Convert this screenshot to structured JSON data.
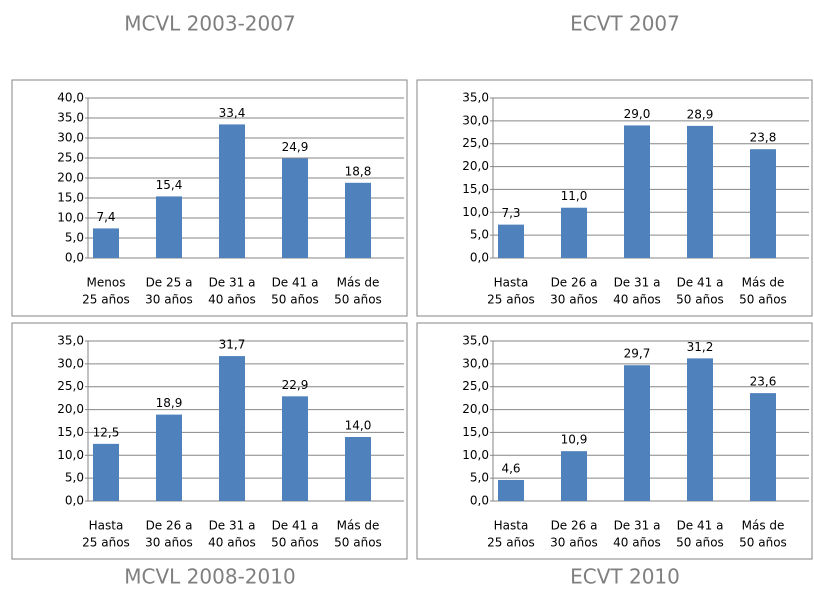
{
  "chart_data": [
    {
      "type": "bar",
      "title": "MCVL 2003-2007",
      "color": "#4f81bd",
      "grid": true,
      "categories": [
        [
          "Menos",
          "25 años"
        ],
        [
          "De 25 a",
          "30 años"
        ],
        [
          "De 31 a",
          "40 años"
        ],
        [
          "De 41 a",
          "50 años"
        ],
        [
          "Más de",
          "50 años"
        ]
      ],
      "values": [
        7.4,
        15.4,
        33.4,
        24.9,
        18.8
      ],
      "value_labels": [
        "7,4",
        "15,4",
        "33,4",
        "24,9",
        "18,8"
      ],
      "ylim": [
        0,
        40
      ],
      "yticks": [
        {
          "value": 0,
          "label": "0,0"
        },
        {
          "value": 5,
          "label": "5,0"
        },
        {
          "value": 10,
          "label": "10,0"
        },
        {
          "value": 15,
          "label": "15,0"
        },
        {
          "value": 20,
          "label": "20,0"
        },
        {
          "value": 25,
          "label": "25,0"
        },
        {
          "value": 30,
          "label": "30,0"
        },
        {
          "value": 35,
          "label": "35,0"
        },
        {
          "value": 40,
          "label": "40,0"
        }
      ]
    },
    {
      "type": "bar",
      "title": "ECVT 2007",
      "color": "#4f81bd",
      "grid": true,
      "categories": [
        [
          "Hasta",
          "25 años"
        ],
        [
          "De 26 a",
          "30 años"
        ],
        [
          "De 31 a",
          "40 años"
        ],
        [
          "De 41 a",
          "50 años"
        ],
        [
          "Más de",
          "50 años"
        ]
      ],
      "values": [
        7.3,
        11.0,
        29.0,
        28.9,
        23.8
      ],
      "value_labels": [
        "7,3",
        "11,0",
        "29,0",
        "28,9",
        "23,8"
      ],
      "ylim": [
        0,
        35
      ],
      "yticks": [
        {
          "value": 0,
          "label": "0,0"
        },
        {
          "value": 5,
          "label": "5,0"
        },
        {
          "value": 10,
          "label": "10,0"
        },
        {
          "value": 15,
          "label": "15,0"
        },
        {
          "value": 20,
          "label": "20,0"
        },
        {
          "value": 25,
          "label": "25,0"
        },
        {
          "value": 30,
          "label": "30,0"
        },
        {
          "value": 35,
          "label": "35,0"
        }
      ]
    },
    {
      "type": "bar",
      "title": "MCVL 2008-2010",
      "color": "#4f81bd",
      "grid": true,
      "categories": [
        [
          "Hasta",
          "25 años"
        ],
        [
          "De 26 a",
          "30 años"
        ],
        [
          "De 31 a",
          "40 años"
        ],
        [
          "De 41 a",
          "50 años"
        ],
        [
          "Más de",
          "50 años"
        ]
      ],
      "values": [
        12.5,
        18.9,
        31.7,
        22.9,
        14.0
      ],
      "value_labels": [
        "12,5",
        "18,9",
        "31,7",
        "22,9",
        "14,0"
      ],
      "ylim": [
        0,
        35
      ],
      "yticks": [
        {
          "value": 0,
          "label": "0,0"
        },
        {
          "value": 5,
          "label": "5,0"
        },
        {
          "value": 10,
          "label": "10,0"
        },
        {
          "value": 15,
          "label": "15,0"
        },
        {
          "value": 20,
          "label": "20,0"
        },
        {
          "value": 25,
          "label": "25,0"
        },
        {
          "value": 30,
          "label": "30,0"
        },
        {
          "value": 35,
          "label": "35,0"
        }
      ]
    },
    {
      "type": "bar",
      "title": "ECVT 2010",
      "color": "#4f81bd",
      "grid": true,
      "categories": [
        [
          "Hasta",
          "25 años"
        ],
        [
          "De 26 a",
          "30 años"
        ],
        [
          "De 31 a",
          "40 años"
        ],
        [
          "De 41 a",
          "50 años"
        ],
        [
          "Más de",
          "50 años"
        ]
      ],
      "values": [
        4.6,
        10.9,
        29.7,
        31.2,
        23.6
      ],
      "value_labels": [
        "4,6",
        "10,9",
        "29,7",
        "31,2",
        "23,6"
      ],
      "ylim": [
        0,
        35
      ],
      "yticks": [
        {
          "value": 0,
          "label": "0,0"
        },
        {
          "value": 5,
          "label": "5,0"
        },
        {
          "value": 10,
          "label": "10,0"
        },
        {
          "value": 15,
          "label": "15,0"
        },
        {
          "value": 20,
          "label": "20,0"
        },
        {
          "value": 25,
          "label": "25,0"
        },
        {
          "value": 30,
          "label": "30,0"
        },
        {
          "value": 35,
          "label": "35,0"
        }
      ]
    }
  ]
}
